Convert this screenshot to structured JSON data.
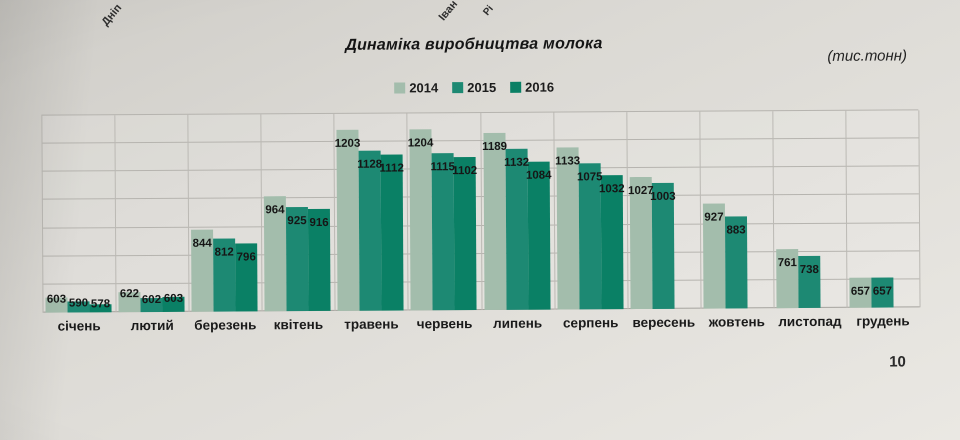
{
  "page": {
    "title": "Динаміка виробництва молока",
    "units_label": "(тис.тонн)",
    "page_number": "10",
    "top_cropped_labels": {
      "left": "Дніп",
      "mid": "Іван",
      "right": "Рі"
    }
  },
  "chart_data": {
    "type": "bar",
    "title": "Динаміка виробництва молока",
    "units": "тис.тонн",
    "categories": [
      "січень",
      "лютий",
      "березень",
      "квітень",
      "травень",
      "червень",
      "липень",
      "серпень",
      "вересень",
      "жовтень",
      "листопад",
      "грудень"
    ],
    "series": [
      {
        "name": "2014",
        "color": "#a3bdac",
        "values": [
          603,
          622,
          844,
          964,
          1203,
          1204,
          1189,
          1133,
          1027,
          927,
          761,
          657
        ]
      },
      {
        "name": "2015",
        "color": "#1d8973",
        "values": [
          590,
          602,
          812,
          925,
          1128,
          1115,
          1132,
          1075,
          1003,
          883,
          738,
          657
        ]
      },
      {
        "name": "2016",
        "color": "#0a8065",
        "values": [
          578,
          603,
          796,
          916,
          1112,
          1102,
          1084,
          1032,
          null,
          null,
          null,
          null
        ]
      }
    ],
    "ylim": [
      550,
      1260
    ],
    "grid": true,
    "legend_position": "top",
    "value_labels": true
  }
}
